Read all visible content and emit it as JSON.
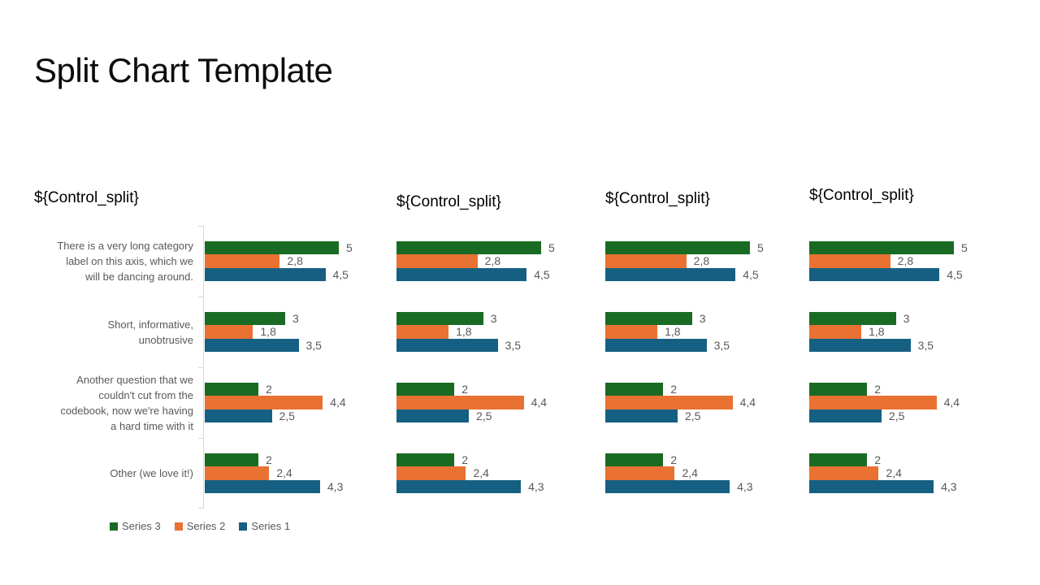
{
  "title": "Split Chart Template",
  "chart_data": {
    "type": "bar",
    "orientation": "horizontal",
    "small_multiples": 4,
    "panels": [
      {
        "header": "${Control_split}"
      },
      {
        "header": "${Control_split}"
      },
      {
        "header": "${Control_split}"
      },
      {
        "header": "${Control_split}"
      }
    ],
    "categories": [
      "There is a very long category\nlabel on this axis, which we\nwill be dancing around.",
      "Short, informative,\nunobtrusive",
      "Another question that we\ncouldn't cut from the\ncodebook, now we're having\na hard time with it",
      "Other (we love it!)"
    ],
    "series": [
      {
        "name": "Series 3",
        "color": "#196B24",
        "values": [
          5,
          3,
          2,
          2
        ],
        "value_labels": [
          "5",
          "3",
          "2",
          "2"
        ]
      },
      {
        "name": "Series 2",
        "color": "#E97132",
        "values": [
          2.8,
          1.8,
          4.4,
          2.4
        ],
        "value_labels": [
          "2,8",
          "1,8",
          "4,4",
          "2,4"
        ]
      },
      {
        "name": "Series 1",
        "color": "#156082",
        "values": [
          4.5,
          3.5,
          2.5,
          4.3
        ],
        "value_labels": [
          "4,5",
          "3,5",
          "2,5",
          "4,3"
        ]
      }
    ],
    "xlim": [
      0,
      5
    ],
    "grid": false,
    "axis_color": "#D9D9D9",
    "text_color": "#595959",
    "legend": {
      "items": [
        "Series 3",
        "Series 2",
        "Series 1"
      ],
      "position": "bottom-left"
    }
  }
}
